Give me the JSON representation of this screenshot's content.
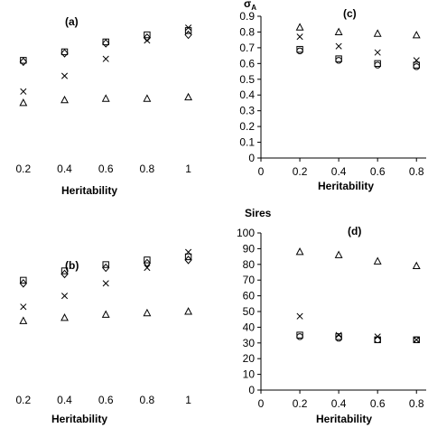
{
  "chart_data": [
    {
      "type": "scatter",
      "panel": "a",
      "title": "(a)",
      "xlabel": "Heritability",
      "ylabel": "",
      "xlim": [
        0.1,
        1.05
      ],
      "ylim": [
        0,
        1
      ],
      "x_ticks": [
        "0.2",
        "0.4",
        "0.6",
        "0.8",
        "1"
      ],
      "y_ticks": [],
      "series": [
        {
          "marker": "square",
          "points": [
            [
              0.2,
              0.67
            ],
            [
              0.4,
              0.73
            ],
            [
              0.6,
              0.8
            ],
            [
              0.8,
              0.85
            ],
            [
              1.0,
              0.88
            ]
          ]
        },
        {
          "marker": "diamond",
          "points": [
            [
              0.2,
              0.66
            ],
            [
              0.4,
              0.72
            ],
            [
              0.6,
              0.79
            ],
            [
              0.8,
              0.83
            ],
            [
              1.0,
              0.85
            ]
          ]
        },
        {
          "marker": "cross",
          "points": [
            [
              0.2,
              0.45
            ],
            [
              0.4,
              0.56
            ],
            [
              0.6,
              0.68
            ],
            [
              0.8,
              0.81
            ],
            [
              1.0,
              0.9
            ]
          ]
        },
        {
          "marker": "triangle",
          "points": [
            [
              0.2,
              0.37
            ],
            [
              0.4,
              0.39
            ],
            [
              0.6,
              0.4
            ],
            [
              0.8,
              0.4
            ],
            [
              1.0,
              0.41
            ]
          ]
        }
      ]
    },
    {
      "type": "scatter",
      "panel": "b",
      "title": "(b)",
      "xlabel": "Heritability",
      "ylabel": "",
      "xlim": [
        0.1,
        1.05
      ],
      "ylim": [
        0,
        1
      ],
      "x_ticks": [
        "0.2",
        "0.4",
        "0.6",
        "0.8",
        "1"
      ],
      "y_ticks": [],
      "series": [
        {
          "marker": "square",
          "points": [
            [
              0.2,
              0.68
            ],
            [
              0.4,
              0.74
            ],
            [
              0.6,
              0.78
            ],
            [
              0.8,
              0.81
            ],
            [
              1.0,
              0.83
            ]
          ]
        },
        {
          "marker": "diamond",
          "points": [
            [
              0.2,
              0.66
            ],
            [
              0.4,
              0.72
            ],
            [
              0.6,
              0.76
            ],
            [
              0.8,
              0.79
            ],
            [
              1.0,
              0.81
            ]
          ]
        },
        {
          "marker": "cross",
          "points": [
            [
              0.2,
              0.51
            ],
            [
              0.4,
              0.58
            ],
            [
              0.6,
              0.66
            ],
            [
              0.8,
              0.76
            ],
            [
              1.0,
              0.86
            ]
          ]
        },
        {
          "marker": "triangle",
          "points": [
            [
              0.2,
              0.42
            ],
            [
              0.4,
              0.44
            ],
            [
              0.6,
              0.46
            ],
            [
              0.8,
              0.47
            ],
            [
              1.0,
              0.48
            ]
          ]
        }
      ]
    },
    {
      "type": "scatter",
      "panel": "c",
      "title": "(c)",
      "xlabel": "Heritability",
      "ylabel": "σA",
      "xlim": [
        0,
        0.85
      ],
      "ylim": [
        0,
        0.9
      ],
      "x_ticks": [
        "0",
        "0.2",
        "0.4",
        "0.6",
        "0.8"
      ],
      "y_ticks": [
        "0",
        "0.1",
        "0.2",
        "0.3",
        "0.4",
        "0.5",
        "0.6",
        "0.7",
        "0.8",
        "0.9"
      ],
      "series": [
        {
          "marker": "triangle",
          "points": [
            [
              0.2,
              0.83
            ],
            [
              0.4,
              0.8
            ],
            [
              0.6,
              0.79
            ],
            [
              0.8,
              0.78
            ]
          ]
        },
        {
          "marker": "cross",
          "points": [
            [
              0.2,
              0.77
            ],
            [
              0.4,
              0.71
            ],
            [
              0.6,
              0.67
            ],
            [
              0.8,
              0.62
            ]
          ]
        },
        {
          "marker": "square",
          "points": [
            [
              0.2,
              0.69
            ],
            [
              0.4,
              0.63
            ],
            [
              0.6,
              0.6
            ],
            [
              0.8,
              0.59
            ]
          ]
        },
        {
          "marker": "circle",
          "points": [
            [
              0.2,
              0.68
            ],
            [
              0.4,
              0.62
            ],
            [
              0.6,
              0.59
            ],
            [
              0.8,
              0.58
            ]
          ]
        }
      ]
    },
    {
      "type": "scatter",
      "panel": "d",
      "title": "(d)",
      "xlabel": "Heritability",
      "ylabel": "Sires",
      "xlim": [
        0,
        0.85
      ],
      "ylim": [
        0,
        100
      ],
      "x_ticks": [
        "0",
        "0.2",
        "0.4",
        "0.6",
        "0.8"
      ],
      "y_ticks": [
        "0",
        "10",
        "20",
        "30",
        "40",
        "50",
        "60",
        "70",
        "80",
        "90",
        "100"
      ],
      "series": [
        {
          "marker": "triangle",
          "points": [
            [
              0.2,
              88
            ],
            [
              0.4,
              86
            ],
            [
              0.6,
              82
            ],
            [
              0.8,
              79
            ]
          ]
        },
        {
          "marker": "cross",
          "points": [
            [
              0.2,
              47
            ],
            [
              0.4,
              35
            ],
            [
              0.6,
              34
            ],
            [
              0.8,
              32
            ]
          ]
        },
        {
          "marker": "square",
          "points": [
            [
              0.2,
              35
            ],
            [
              0.4,
              34
            ],
            [
              0.6,
              32
            ],
            [
              0.8,
              32
            ]
          ]
        },
        {
          "marker": "circle",
          "points": [
            [
              0.2,
              34
            ],
            [
              0.4,
              33
            ],
            [
              0.6,
              32
            ],
            [
              0.8,
              32
            ]
          ]
        }
      ]
    }
  ]
}
